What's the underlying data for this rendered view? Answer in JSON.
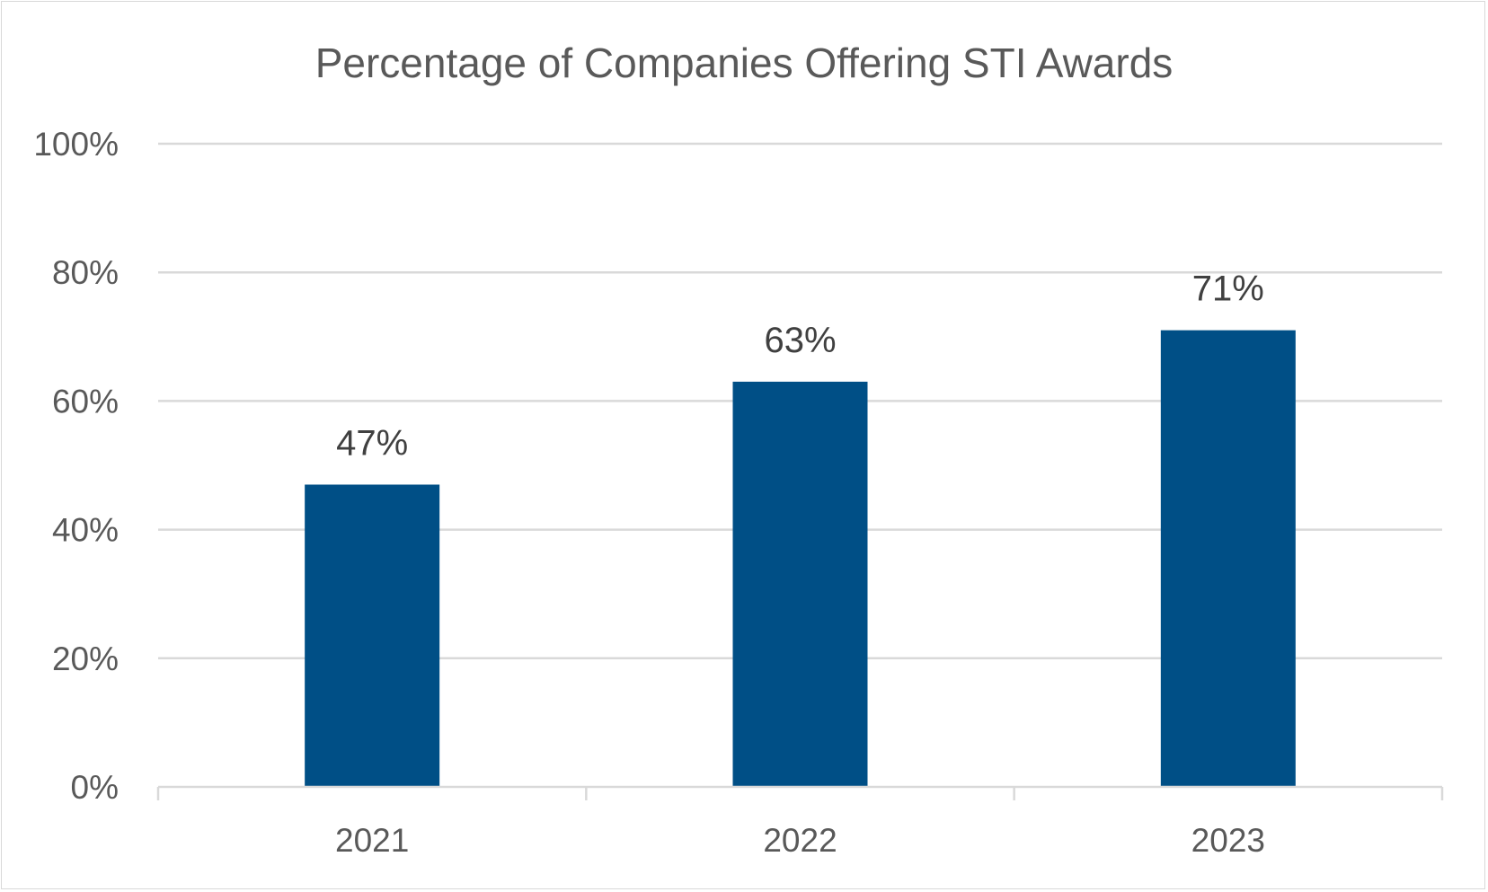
{
  "chart_data": {
    "type": "bar",
    "title": "Percentage of Companies Offering STI Awards",
    "xlabel": "",
    "ylabel": "",
    "categories": [
      "2021",
      "2022",
      "2023"
    ],
    "values": [
      47,
      63,
      71
    ],
    "data_labels": [
      "47%",
      "63%",
      "71%"
    ],
    "ylim": [
      0,
      100
    ],
    "y_ticks": [
      0,
      20,
      40,
      60,
      80,
      100
    ],
    "y_tick_labels": [
      "0%",
      "20%",
      "40%",
      "60%",
      "80%",
      "100%"
    ],
    "grid": true,
    "legend": "none",
    "bar_color": "#004f86",
    "gridline_color": "#d9d9d9"
  }
}
